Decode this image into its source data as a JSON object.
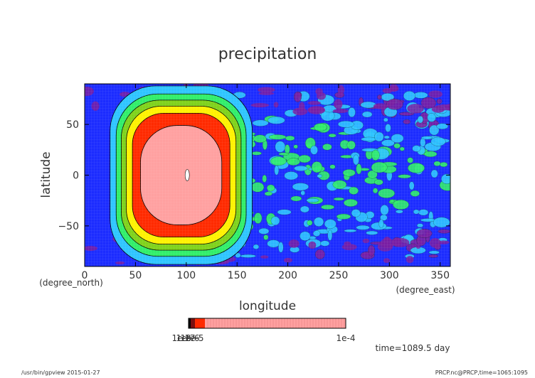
{
  "chart_data": {
    "type": "heatmap",
    "title": "precipitation",
    "xlabel": "longitude",
    "ylabel": "latitude",
    "x_unit": "(degree_east)",
    "y_unit": "(degree_north)",
    "xlim": [
      0,
      360
    ],
    "ylim": [
      -90,
      90
    ],
    "x_ticks": [
      "0",
      "50",
      "100",
      "150",
      "200",
      "250",
      "300",
      "350"
    ],
    "y_ticks": [
      "50",
      "0",
      "−50"
    ],
    "x_tick_values": [
      0,
      50,
      100,
      150,
      200,
      250,
      300,
      350
    ],
    "y_tick_values": [
      50,
      0,
      -50
    ],
    "grid": false,
    "colorbar": {
      "labels": [
        "1e-8",
        "1e-7",
        "1e-6",
        "1e-5",
        "1e-4"
      ],
      "orientation": "horizontal",
      "colors": [
        "#7a1fa2",
        "#1c2cff",
        "#2ec5ff",
        "#31ee6a",
        "#7fd21b",
        "#fff200",
        "#ff2a00",
        "#ffa0a0"
      ]
    },
    "annotation": "time=1089.5  day",
    "features": [
      {
        "name": "heating-region-maximum",
        "lon_center": 95,
        "lat_center": 0,
        "lon_halfwidth": 40,
        "lat_halfwidth": 45,
        "level": "1e-4"
      }
    ]
  },
  "footer": {
    "left": "/usr/bin/gpview  2015-01-27",
    "right": "PRCP.nc@PRCP,time=1065:1095"
  },
  "colors": {
    "background_level": "#1c2cff",
    "low_level": "#7a1fa2"
  }
}
